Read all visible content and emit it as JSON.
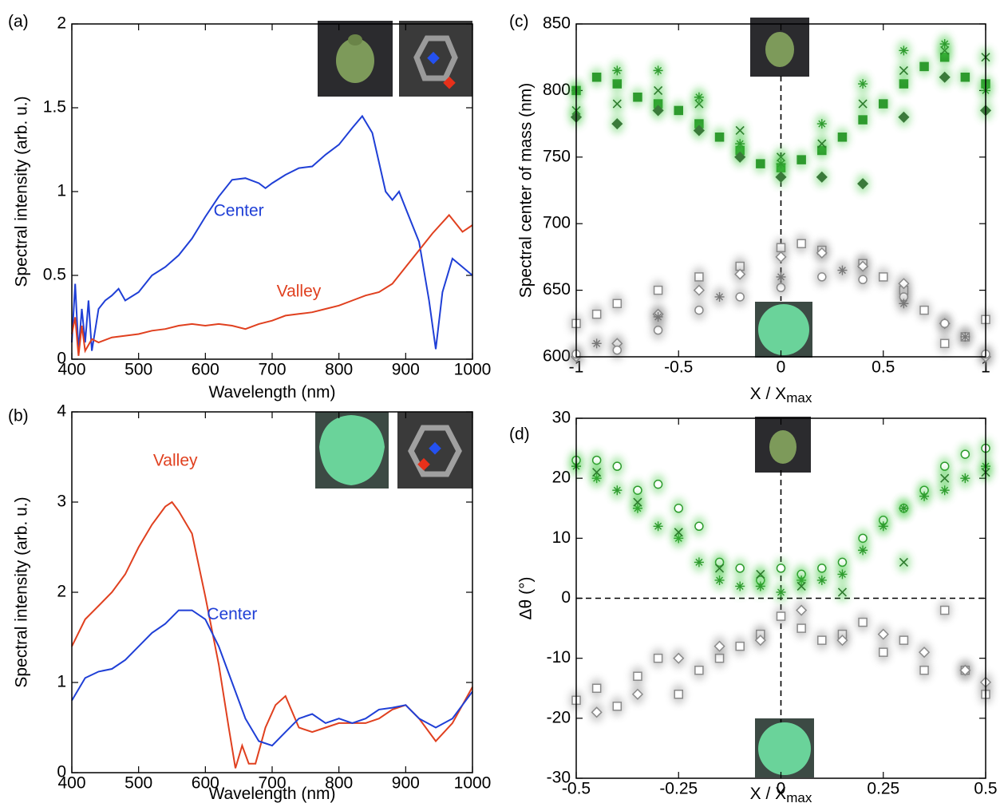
{
  "chart_data": [
    {
      "type": "line",
      "panel": "(a)",
      "xlabel": "Wavelength (nm)",
      "ylabel": "Spectral intensity (arb. u.)",
      "xlim": [
        400,
        1000
      ],
      "xticks": [
        400,
        500,
        600,
        700,
        800,
        900,
        1000
      ],
      "ylim": [
        0,
        2
      ],
      "yticks": [
        0,
        0.5,
        1,
        1.5,
        2
      ],
      "series": [
        {
          "name": "Center",
          "color": "#1f3fd6",
          "x": [
            400,
            405,
            410,
            415,
            420,
            425,
            430,
            440,
            450,
            460,
            470,
            480,
            500,
            520,
            540,
            560,
            580,
            600,
            620,
            640,
            660,
            680,
            690,
            700,
            720,
            740,
            760,
            780,
            800,
            820,
            835,
            850,
            870,
            880,
            890,
            900,
            920,
            935,
            945,
            955,
            970,
            985,
            1000
          ],
          "values": [
            0.1,
            0.45,
            0.05,
            0.3,
            0.1,
            0.35,
            0.05,
            0.3,
            0.35,
            0.38,
            0.42,
            0.35,
            0.4,
            0.5,
            0.55,
            0.62,
            0.72,
            0.85,
            0.97,
            1.07,
            1.08,
            1.05,
            1.02,
            1.05,
            1.1,
            1.14,
            1.15,
            1.22,
            1.28,
            1.38,
            1.45,
            1.35,
            1.0,
            0.95,
            1.0,
            0.9,
            0.7,
            0.35,
            0.06,
            0.4,
            0.6,
            0.55,
            0.5
          ]
        },
        {
          "name": "Valley",
          "color": "#e0401f",
          "x": [
            400,
            405,
            410,
            415,
            420,
            430,
            440,
            460,
            480,
            500,
            520,
            540,
            560,
            580,
            600,
            620,
            640,
            660,
            680,
            700,
            720,
            740,
            760,
            780,
            800,
            820,
            840,
            860,
            880,
            900,
            920,
            940,
            965,
            985,
            1000
          ],
          "values": [
            0.15,
            0.25,
            0.02,
            0.2,
            0.05,
            0.12,
            0.1,
            0.13,
            0.14,
            0.15,
            0.17,
            0.18,
            0.2,
            0.21,
            0.2,
            0.21,
            0.2,
            0.18,
            0.21,
            0.23,
            0.26,
            0.27,
            0.28,
            0.3,
            0.32,
            0.35,
            0.38,
            0.4,
            0.45,
            0.55,
            0.65,
            0.75,
            0.86,
            0.76,
            0.8
          ]
        }
      ]
    },
    {
      "type": "line",
      "panel": "(b)",
      "xlabel": "Wavelength (nm)",
      "ylabel": "Spectral intensity (arb. u.)",
      "xlim": [
        400,
        1000
      ],
      "xticks": [
        400,
        500,
        600,
        700,
        800,
        900,
        1000
      ],
      "ylim": [
        0,
        4
      ],
      "yticks": [
        0,
        1,
        2,
        3,
        4
      ],
      "series": [
        {
          "name": "Valley",
          "color": "#e0401f",
          "x": [
            400,
            420,
            440,
            460,
            480,
            500,
            520,
            540,
            550,
            560,
            580,
            600,
            620,
            635,
            645,
            655,
            665,
            675,
            690,
            705,
            720,
            740,
            760,
            780,
            800,
            820,
            840,
            860,
            880,
            900,
            920,
            945,
            970,
            1000
          ],
          "values": [
            1.4,
            1.7,
            1.85,
            2.0,
            2.2,
            2.5,
            2.75,
            2.95,
            3.0,
            2.9,
            2.65,
            1.95,
            1.2,
            0.5,
            0.05,
            0.3,
            0.1,
            0.1,
            0.5,
            0.75,
            0.85,
            0.5,
            0.45,
            0.5,
            0.55,
            0.55,
            0.55,
            0.6,
            0.7,
            0.75,
            0.6,
            0.35,
            0.55,
            0.95
          ]
        },
        {
          "name": "Center",
          "color": "#1f3fd6",
          "x": [
            400,
            420,
            440,
            460,
            480,
            500,
            520,
            540,
            560,
            580,
            600,
            620,
            640,
            660,
            680,
            700,
            720,
            740,
            760,
            780,
            800,
            820,
            840,
            860,
            880,
            900,
            920,
            945,
            970,
            1000
          ],
          "values": [
            0.8,
            1.05,
            1.12,
            1.15,
            1.25,
            1.4,
            1.55,
            1.65,
            1.8,
            1.8,
            1.7,
            1.4,
            1.0,
            0.6,
            0.35,
            0.3,
            0.45,
            0.6,
            0.65,
            0.55,
            0.6,
            0.55,
            0.6,
            0.7,
            0.72,
            0.75,
            0.6,
            0.5,
            0.6,
            0.9
          ]
        }
      ]
    },
    {
      "type": "scatter",
      "panel": "(c)",
      "xlabel": "X / X",
      "xlabel_sub": "max",
      "ylabel": "Spectral center of mass (nm)",
      "xlim": [
        -1,
        1
      ],
      "xticks": [
        -1,
        -0.5,
        0,
        0.5,
        1
      ],
      "ylim": [
        600,
        850
      ],
      "yticks": [
        600,
        650,
        700,
        750,
        800,
        850
      ],
      "vlines": [
        0
      ],
      "series": [
        {
          "marker": "square",
          "color": "#2e9b2e",
          "x": [
            -1,
            -0.9,
            -0.8,
            -0.7,
            -0.6,
            -0.5,
            -0.4,
            -0.3,
            -0.2,
            -0.1,
            0,
            0.1,
            0.2,
            0.3,
            0.4,
            0.5,
            0.6,
            0.7,
            0.8,
            0.9,
            1
          ],
          "values": [
            800,
            810,
            805,
            795,
            790,
            785,
            775,
            765,
            755,
            745,
            742,
            748,
            755,
            765,
            778,
            790,
            805,
            818,
            825,
            810,
            805
          ]
        },
        {
          "marker": "x",
          "color": "#2e7b2e",
          "x": [
            -1,
            -0.8,
            -0.6,
            -0.4,
            -0.2,
            0,
            0.2,
            0.4,
            0.6,
            0.8,
            1
          ],
          "values": [
            785,
            790,
            800,
            790,
            770,
            750,
            760,
            790,
            815,
            830,
            825
          ]
        },
        {
          "marker": "star",
          "color": "#2e9b2e",
          "x": [
            -1,
            -0.8,
            -0.6,
            -0.4,
            -0.2,
            0,
            0.2,
            0.4,
            0.6,
            0.8,
            1
          ],
          "values": [
            800,
            815,
            815,
            795,
            760,
            745,
            775,
            805,
            830,
            835,
            800
          ]
        },
        {
          "marker": "diamond",
          "color": "#3a7a3a",
          "x": [
            -1,
            -0.8,
            -0.6,
            -0.4,
            -0.2,
            0,
            0.2,
            0.4,
            0.6,
            0.8,
            1
          ],
          "values": [
            780,
            775,
            785,
            770,
            750,
            735,
            735,
            730,
            780,
            810,
            785
          ]
        },
        {
          "marker": "square",
          "color": "#8a8a8a",
          "x": [
            -1,
            -0.9,
            -0.8,
            -0.6,
            -0.4,
            -0.2,
            0,
            0.1,
            0.2,
            0.4,
            0.5,
            0.6,
            0.7,
            0.8,
            0.9,
            1
          ],
          "values": [
            625,
            632,
            640,
            650,
            660,
            668,
            682,
            685,
            680,
            670,
            660,
            650,
            635,
            610,
            615,
            628
          ]
        },
        {
          "marker": "diamond",
          "color": "#8a8a8a",
          "x": [
            -1,
            -0.8,
            -0.6,
            -0.4,
            -0.2,
            0,
            0.2,
            0.4,
            0.6,
            0.8,
            1
          ],
          "values": [
            600,
            610,
            632,
            650,
            662,
            675,
            678,
            668,
            655,
            625,
            600
          ]
        },
        {
          "marker": "circle",
          "color": "#8a8a8a",
          "x": [
            -1,
            -0.8,
            -0.6,
            -0.4,
            -0.2,
            0,
            0.2,
            0.4,
            0.6,
            0.8,
            1
          ],
          "values": [
            602,
            605,
            620,
            635,
            645,
            652,
            660,
            658,
            645,
            625,
            602
          ]
        },
        {
          "marker": "star",
          "color": "#777777",
          "x": [
            -0.9,
            -0.6,
            -0.3,
            0,
            0.3,
            0.6,
            0.9
          ],
          "values": [
            610,
            630,
            645,
            660,
            665,
            640,
            615
          ]
        }
      ]
    },
    {
      "type": "scatter",
      "panel": "(d)",
      "xlabel": "X / X",
      "xlabel_sub": "max",
      "ylabel": "Δθ (°)",
      "xlim": [
        -0.5,
        0.5
      ],
      "xticks": [
        -0.5,
        -0.25,
        0,
        0.25,
        0.5
      ],
      "ylim": [
        -30,
        30
      ],
      "yticks": [
        -30,
        -20,
        -10,
        0,
        10,
        20,
        30
      ],
      "vlines": [
        0
      ],
      "hlines": [
        0
      ],
      "series": [
        {
          "marker": "circle",
          "color": "#2e9b2e",
          "x": [
            -0.5,
            -0.45,
            -0.4,
            -0.35,
            -0.3,
            -0.25,
            -0.2,
            -0.15,
            -0.1,
            -0.05,
            0,
            0.05,
            0.1,
            0.15,
            0.2,
            0.25,
            0.3,
            0.35,
            0.4,
            0.45,
            0.5
          ],
          "values": [
            23,
            23,
            22,
            18,
            19,
            15,
            12,
            6,
            5,
            3,
            5,
            4,
            5,
            6,
            10,
            13,
            15,
            18,
            22,
            24,
            25
          ]
        },
        {
          "marker": "star",
          "color": "#2e9b2e",
          "x": [
            -0.5,
            -0.45,
            -0.4,
            -0.35,
            -0.3,
            -0.25,
            -0.2,
            -0.15,
            -0.1,
            -0.05,
            0,
            0.05,
            0.1,
            0.15,
            0.2,
            0.25,
            0.3,
            0.35,
            0.4,
            0.45,
            0.5
          ],
          "values": [
            22,
            20,
            18,
            15,
            12,
            10,
            6,
            3,
            2,
            2,
            1,
            3,
            3,
            4,
            8,
            12,
            15,
            17,
            18,
            20,
            22
          ]
        },
        {
          "marker": "x",
          "color": "#2e7b2e",
          "x": [
            -0.45,
            -0.35,
            -0.25,
            -0.15,
            -0.05,
            0.05,
            0.15,
            0.3,
            0.4,
            0.5
          ],
          "values": [
            21,
            16,
            11,
            5,
            4,
            2,
            1,
            6,
            20,
            21
          ]
        },
        {
          "marker": "square",
          "color": "#8a8a8a",
          "x": [
            -0.5,
            -0.45,
            -0.4,
            -0.35,
            -0.3,
            -0.25,
            -0.2,
            -0.15,
            -0.1,
            -0.05,
            0,
            0.05,
            0.1,
            0.15,
            0.2,
            0.25,
            0.3,
            0.35,
            0.4,
            0.45,
            0.5
          ],
          "values": [
            -17,
            -15,
            -18,
            -13,
            -10,
            -16,
            -12,
            -10,
            -8,
            -6,
            -3,
            -5,
            -7,
            -6,
            -4,
            -9,
            -7,
            -12,
            -2,
            -12,
            -16
          ]
        },
        {
          "marker": "diamond",
          "color": "#8a8a8a",
          "x": [
            -0.45,
            -0.35,
            -0.25,
            -0.15,
            -0.05,
            0.05,
            0.15,
            0.25,
            0.35,
            0.45,
            0.5
          ],
          "values": [
            -19,
            -16,
            -10,
            -8,
            -7,
            -2,
            -7,
            -6,
            -9,
            -12,
            -14
          ]
        }
      ]
    }
  ]
}
